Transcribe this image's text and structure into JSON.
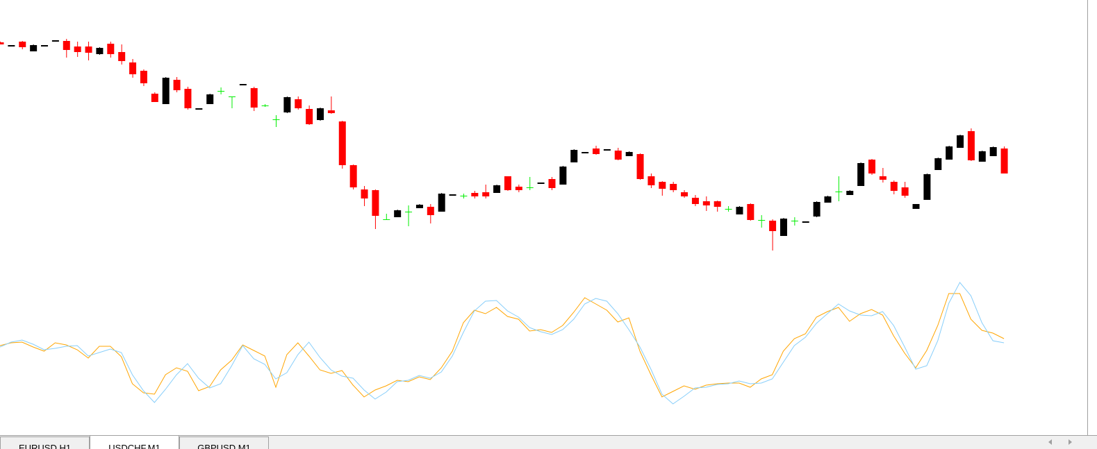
{
  "tabs": [
    "EURUSD,H1",
    "USDCHF,M1",
    "GBPUSD,M1"
  ],
  "active_tab": 1,
  "chart_data": [
    {
      "type": "candlestick",
      "ylim": [
        0,
        400
      ],
      "up_color": "#000000",
      "down_color": "#ff0000",
      "doji_color": "#00ee00",
      "open": [
        339,
        334,
        340,
        326,
        334,
        341,
        341,
        333,
        333,
        322,
        337,
        325,
        310,
        298,
        265,
        250,
        285,
        272,
        243,
        250,
        269,
        261,
        278,
        273,
        248,
        228,
        238,
        257,
        243,
        227,
        241,
        225,
        162,
        127,
        126,
        84,
        87,
        95,
        100,
        102,
        95,
        119,
        118,
        122,
        123,
        122,
        146,
        131,
        130,
        136,
        142,
        134,
        166,
        180,
        186,
        184,
        183,
        175,
        178,
        146,
        138,
        135,
        123,
        115,
        110,
        110,
        99,
        91,
        106,
        83,
        82,
        60,
        82,
        80,
        88,
        108,
        124,
        119,
        132,
        170,
        146,
        138,
        130,
        99,
        112,
        155,
        170,
        187,
        211,
        167,
        175,
        186
      ],
      "high": [
        340,
        335,
        341,
        336,
        335,
        342,
        344,
        340,
        340,
        332,
        340,
        336,
        315,
        300,
        267,
        289,
        289,
        275,
        244,
        265,
        274,
        261,
        279,
        275,
        250,
        234,
        261,
        261,
        248,
        245,
        261,
        226,
        163,
        132,
        127,
        92,
        98,
        104,
        106,
        106,
        122,
        120,
        121,
        125,
        134,
        134,
        146,
        134,
        145,
        137,
        145,
        161,
        185,
        181,
        190,
        185,
        187,
        182,
        179,
        150,
        139,
        138,
        126,
        119,
        117,
        111,
        103,
        103,
        107,
        90,
        84,
        86,
        87,
        81,
        110,
        118,
        146,
        126,
        166,
        171,
        158,
        140,
        138,
        106,
        150,
        173,
        190,
        206,
        215,
        183,
        189,
        189
      ],
      "low": [
        336,
        334,
        329,
        326,
        334,
        341,
        317,
        318,
        313,
        321,
        317,
        307,
        288,
        276,
        253,
        250,
        267,
        242,
        243,
        250,
        264,
        244,
        278,
        240,
        246,
        217,
        237,
        242,
        220,
        226,
        236,
        157,
        127,
        103,
        70,
        83,
        87,
        74,
        100,
        78,
        95,
        119,
        114,
        114,
        114,
        122,
        125,
        123,
        126,
        136,
        126,
        134,
        166,
        180,
        177,
        184,
        169,
        175,
        141,
        129,
        118,
        123,
        115,
        103,
        96,
        95,
        95,
        91,
        82,
        72,
        39,
        60,
        75,
        80,
        87,
        108,
        110,
        119,
        132,
        148,
        137,
        120,
        115,
        99,
        112,
        155,
        170,
        187,
        168,
        167,
        175,
        150
      ],
      "close": [
        336,
        335,
        332,
        335,
        335,
        342,
        328,
        325,
        324,
        331,
        322,
        312,
        293,
        280,
        253,
        288,
        270,
        244,
        244,
        264,
        269,
        261,
        279,
        245,
        248,
        228,
        260,
        244,
        221,
        244,
        237,
        162,
        130,
        114,
        89,
        84,
        97,
        95,
        105,
        90,
        121,
        120,
        118,
        117,
        117,
        133,
        126,
        126,
        130,
        137,
        129,
        160,
        184,
        181,
        178,
        185,
        170,
        181,
        142,
        133,
        128,
        126,
        117,
        106,
        104,
        102,
        99,
        102,
        83,
        83,
        67,
        85,
        82,
        81,
        109,
        117,
        124,
        125,
        165,
        150,
        141,
        125,
        118,
        106,
        149,
        172,
        189,
        205,
        169,
        182,
        188,
        150
      ]
    },
    {
      "type": "line",
      "ylim": [
        0,
        100
      ],
      "series": [
        {
          "color": "#ffa500",
          "values": [
            51,
            53,
            53.5,
            50,
            47,
            53,
            51.5,
            48,
            42,
            50.5,
            50.5,
            43,
            23.5,
            17,
            16,
            30,
            35,
            32.5,
            18.5,
            21.5,
            33.5,
            40.5,
            51.5,
            47.5,
            43.5,
            21,
            44.5,
            53,
            43.5,
            33.5,
            31,
            33,
            22.5,
            14,
            19,
            22,
            26,
            25,
            28.5,
            26.5,
            35,
            47,
            67.5,
            76.5,
            74,
            78.5,
            72,
            70,
            61.5,
            62.5,
            60.5,
            65.5,
            75,
            85.5,
            81,
            76.5,
            68,
            71,
            47,
            30,
            14,
            18,
            22,
            19.5,
            22.5,
            23.5,
            24,
            24,
            21,
            27,
            30,
            47,
            56,
            59.5,
            71.5,
            75.5,
            78.5,
            68.5,
            74,
            77,
            73,
            58,
            45.5,
            35,
            47.5,
            65.5,
            88.5,
            88.5,
            70,
            62,
            60,
            56
          ]
        },
        {
          "color": "#87cefa",
          "values": [
            50,
            53.5,
            55,
            52,
            48,
            49,
            50.5,
            51,
            43.5,
            46,
            48.5,
            46,
            30,
            18.5,
            10,
            19.5,
            30,
            38,
            27.5,
            20.5,
            23.5,
            36.5,
            51,
            41.5,
            37.5,
            27,
            31.5,
            44.5,
            53.5,
            42.5,
            33.5,
            29,
            27.5,
            19,
            12.5,
            17.5,
            25,
            26,
            29.5,
            27.5,
            32,
            43.5,
            60.5,
            76,
            83,
            83.5,
            76,
            71.5,
            64,
            61,
            59,
            62.5,
            70,
            81,
            85,
            83,
            74,
            62.5,
            50,
            34,
            16,
            9,
            14.5,
            20.5,
            21,
            23,
            23.5,
            25.5,
            23.5,
            24,
            27,
            39,
            51,
            57,
            67,
            74,
            81,
            76,
            73,
            72.5,
            75.5,
            65.5,
            50,
            34,
            36.5,
            54.5,
            81.5,
            96.5,
            87,
            67.5,
            54.5,
            53
          ]
        }
      ]
    }
  ]
}
